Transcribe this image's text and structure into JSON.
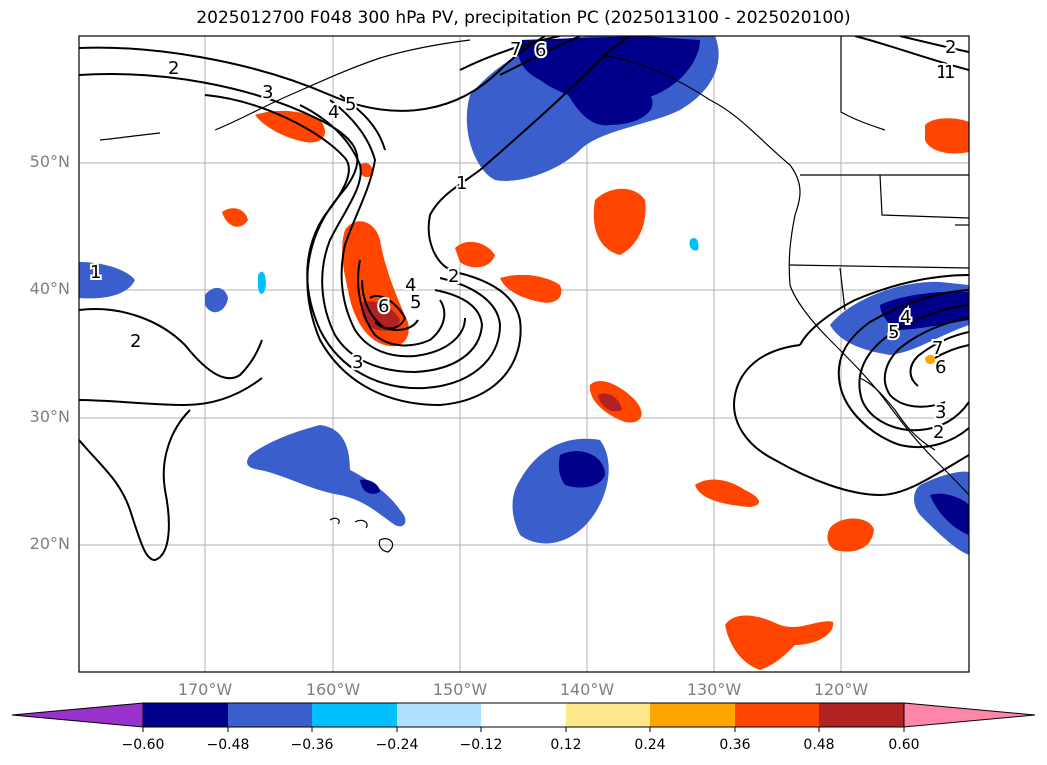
{
  "title": "2025012700 F048 300 hPa PV, precipitation PC (2025013100 - 2025020100)",
  "latitude_labels": [
    {
      "value": 50,
      "text": "50°N"
    },
    {
      "value": 40,
      "text": "40°N"
    },
    {
      "value": 30,
      "text": "30°N"
    },
    {
      "value": 20,
      "text": "20°N"
    }
  ],
  "longitude_labels": [
    {
      "value": -170,
      "text": "170°W"
    },
    {
      "value": -160,
      "text": "160°W"
    },
    {
      "value": -150,
      "text": "150°W"
    },
    {
      "value": -140,
      "text": "140°W"
    },
    {
      "value": -130,
      "text": "130°W"
    },
    {
      "value": -120,
      "text": "120°W"
    }
  ],
  "map_extent": {
    "lon_min": -180,
    "lon_max": -110,
    "lat_min": 10,
    "lat_max": 60
  },
  "gridlines": true,
  "contour_labels": [
    "2",
    "1",
    "3",
    "4",
    "5",
    "7",
    "6",
    "1",
    "2",
    "4",
    "5",
    "6",
    "3",
    "2",
    "1",
    "2",
    "5",
    "4",
    "7",
    "6",
    "3",
    "2",
    "2",
    "1"
  ],
  "colorbar": {
    "extend": "both",
    "ticks": [
      "−0.60",
      "−0.48",
      "−0.36",
      "−0.24",
      "−0.12",
      "0.12",
      "0.24",
      "0.36",
      "0.48",
      "0.60"
    ],
    "colors": [
      "#9932cc",
      "#00008b",
      "#3a5fcd",
      "#00bfff",
      "#b0e2ff",
      "#ffffff",
      "#fee88b",
      "#ffa500",
      "#ff4500",
      "#b22222",
      "#ff86a8"
    ]
  }
}
